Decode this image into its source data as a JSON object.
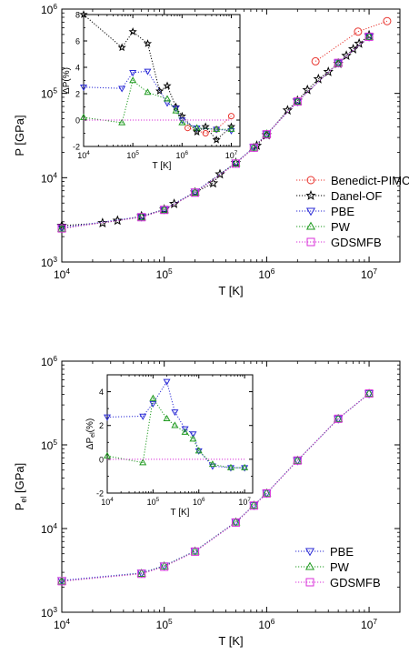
{
  "chart_data": [
    {
      "type": "scatter",
      "xlabel": "T [K]",
      "ylabel": "P [GPa]",
      "xscale": "log",
      "yscale": "log",
      "xlim": [
        10000,
        20000000
      ],
      "ylim": [
        1000,
        1000000
      ],
      "xticks": [
        {
          "v": 10000,
          "b": "10",
          "e": "4"
        },
        {
          "v": 100000,
          "b": "10",
          "e": "5"
        },
        {
          "v": 1000000,
          "b": "10",
          "e": "6"
        },
        {
          "v": 10000000,
          "b": "10",
          "e": "7"
        }
      ],
      "yticks": [
        {
          "v": 1000,
          "b": "10",
          "e": "3"
        },
        {
          "v": 10000,
          "b": "10",
          "e": "4"
        },
        {
          "v": 100000,
          "b": "10",
          "e": "5"
        },
        {
          "v": 1000000,
          "b": "10",
          "e": "6"
        }
      ],
      "legend_position": "bottom-right",
      "series": [
        {
          "name": "Benedict-PIMC",
          "color": "#e8352f",
          "marker": "circle",
          "x": [
            3000000,
            7800000,
            15000000
          ],
          "y": [
            240000,
            540000,
            720000
          ]
        },
        {
          "name": "Danel-OF",
          "color": "#000000",
          "marker": "star",
          "x": [
            10000,
            25000,
            35000,
            60000,
            100000,
            125000,
            200000,
            300000,
            350000,
            500000,
            800000,
            1000000,
            1600000,
            2000000,
            2500000,
            3200000,
            4000000,
            5000000,
            6000000,
            7000000,
            8000000,
            10000000
          ],
          "y": [
            2700,
            2900,
            3100,
            3500,
            4200,
            4900,
            6700,
            8600,
            11000,
            15000,
            24000,
            32000,
            63000,
            82000,
            110000,
            148000,
            180000,
            225000,
            280000,
            335000,
            390000,
            490000
          ]
        },
        {
          "name": "PBE",
          "color": "#2b2bd6",
          "marker": "triangle-down",
          "x": [
            10000,
            60000,
            100000,
            200000,
            500000,
            750000,
            1000000,
            2000000,
            5000000,
            10000000
          ],
          "y": [
            2550,
            3450,
            4200,
            6800,
            15000,
            23000,
            33000,
            80000,
            230000,
            470000
          ]
        },
        {
          "name": "PW",
          "color": "#1f9a1f",
          "marker": "triangle-up",
          "x": [
            10000,
            60000,
            100000,
            200000,
            500000,
            750000,
            1000000,
            2000000,
            5000000,
            10000000
          ],
          "y": [
            2500,
            3400,
            4150,
            6700,
            14800,
            22800,
            32800,
            80000,
            230000,
            470000
          ]
        },
        {
          "name": "GDSMFB",
          "color": "#d92fd9",
          "marker": "square",
          "x": [
            10000,
            60000,
            100000,
            200000,
            500000,
            750000,
            1000000,
            2000000,
            5000000,
            10000000
          ],
          "y": [
            2500,
            3400,
            4150,
            6650,
            14700,
            22700,
            32700,
            80000,
            230000,
            470000
          ]
        }
      ],
      "inset": {
        "xlabel": "T [K]",
        "ylabel": "ΔP(%)",
        "xscale": "log",
        "xlim": [
          10000,
          15000000
        ],
        "ylim": [
          -2,
          8
        ],
        "xticks": [
          {
            "v": 10000,
            "b": "10",
            "e": "4"
          },
          {
            "v": 100000,
            "b": "10",
            "e": "5"
          },
          {
            "v": 1000000,
            "b": "10",
            "e": "6"
          },
          {
            "v": 10000000,
            "b": "10",
            "e": "7"
          }
        ],
        "yticks": [
          -2,
          0,
          2,
          4,
          6,
          8
        ],
        "series": [
          {
            "name": "Benedict-PIMC",
            "color": "#e8352f",
            "marker": "circle",
            "x": [
              1300000,
              3000000,
              5000000,
              10000000
            ],
            "y": [
              -0.6,
              -1.0,
              -0.7,
              0.3
            ]
          },
          {
            "name": "Danel-OF",
            "color": "#000000",
            "marker": "star",
            "x": [
              10000,
              60000,
              100000,
              200000,
              350000,
              500000,
              750000,
              1000000,
              2000000,
              3000000,
              5000000,
              10000000
            ],
            "y": [
              8.0,
              5.5,
              6.7,
              5.8,
              2.2,
              2.6,
              1.0,
              0.3,
              -0.9,
              -0.5,
              -1.5,
              -0.5
            ]
          },
          {
            "name": "PBE",
            "color": "#2b2bd6",
            "marker": "triangle-down",
            "x": [
              10000,
              60000,
              100000,
              200000,
              500000,
              750000,
              1000000,
              2000000,
              5000000,
              10000000
            ],
            "y": [
              2.5,
              2.4,
              3.6,
              3.7,
              1.3,
              0.9,
              0.0,
              -0.6,
              -0.7,
              -0.8
            ]
          },
          {
            "name": "PW",
            "color": "#1f9a1f",
            "marker": "triangle-up",
            "x": [
              10000,
              60000,
              100000,
              200000,
              500000,
              750000,
              1000000,
              2000000,
              5000000,
              10000000
            ],
            "y": [
              0.2,
              -0.2,
              3.0,
              2.1,
              1.6,
              0.7,
              -0.2,
              -0.6,
              -0.7,
              -0.7
            ]
          },
          {
            "name": "GDSMFB",
            "color": "#d92fd9",
            "marker": "none",
            "x": [
              10000,
              10000000
            ],
            "y": [
              0,
              0
            ]
          }
        ]
      }
    },
    {
      "type": "scatter",
      "xlabel": "T [K]",
      "ylabel_main": "P",
      "ylabel_sub": "el",
      "ylabel_rest": " [GPa]",
      "xscale": "log",
      "yscale": "log",
      "xlim": [
        10000,
        20000000
      ],
      "ylim": [
        1000,
        1000000
      ],
      "xticks": [
        {
          "v": 10000,
          "b": "10",
          "e": "4"
        },
        {
          "v": 100000,
          "b": "10",
          "e": "5"
        },
        {
          "v": 1000000,
          "b": "10",
          "e": "6"
        },
        {
          "v": 10000000,
          "b": "10",
          "e": "7"
        }
      ],
      "yticks": [
        {
          "v": 1000,
          "b": "10",
          "e": "3"
        },
        {
          "v": 10000,
          "b": "10",
          "e": "4"
        },
        {
          "v": 100000,
          "b": "10",
          "e": "5"
        },
        {
          "v": 1000000,
          "b": "10",
          "e": "6"
        }
      ],
      "legend_position": "bottom-right",
      "series": [
        {
          "name": "PBE",
          "color": "#2b2bd6",
          "marker": "triangle-down",
          "x": [
            10000,
            60000,
            100000,
            200000,
            500000,
            750000,
            1000000,
            2000000,
            5000000,
            10000000
          ],
          "y": [
            2400,
            2950,
            3600,
            5400,
            12000,
            19000,
            26500,
            65000,
            205000,
            410000
          ]
        },
        {
          "name": "PW",
          "color": "#1f9a1f",
          "marker": "triangle-up",
          "x": [
            10000,
            60000,
            100000,
            200000,
            500000,
            750000,
            1000000,
            2000000,
            5000000,
            10000000
          ],
          "y": [
            2350,
            2900,
            3550,
            5350,
            11900,
            18900,
            26400,
            65000,
            205000,
            410000
          ]
        },
        {
          "name": "GDSMFB",
          "color": "#d92fd9",
          "marker": "square",
          "x": [
            10000,
            60000,
            100000,
            200000,
            500000,
            750000,
            1000000,
            2000000,
            5000000,
            10000000
          ],
          "y": [
            2350,
            2880,
            3500,
            5300,
            11800,
            18800,
            26300,
            65000,
            205000,
            410000
          ]
        }
      ],
      "inset": {
        "xlabel": "T [K]",
        "ylabel_main": "ΔP",
        "ylabel_sub": "el",
        "ylabel_rest": "(%)",
        "xscale": "log",
        "xlim": [
          10000,
          15000000
        ],
        "ylim": [
          -2,
          5
        ],
        "xticks": [
          {
            "v": 10000,
            "b": "10",
            "e": "4"
          },
          {
            "v": 100000,
            "b": "10",
            "e": "5"
          },
          {
            "v": 1000000,
            "b": "10",
            "e": "6"
          },
          {
            "v": 10000000,
            "b": "10",
            "e": "7"
          }
        ],
        "yticks": [
          -2,
          0,
          2,
          4
        ],
        "series": [
          {
            "name": "PBE",
            "color": "#2b2bd6",
            "marker": "triangle-down",
            "x": [
              10000,
              60000,
              100000,
              200000,
              300000,
              500000,
              750000,
              1000000,
              2000000,
              5000000,
              10000000
            ],
            "y": [
              2.5,
              2.55,
              3.3,
              4.6,
              2.8,
              1.8,
              1.5,
              0.5,
              -0.4,
              -0.5,
              -0.5
            ]
          },
          {
            "name": "PW",
            "color": "#1f9a1f",
            "marker": "triangle-up",
            "x": [
              10000,
              60000,
              100000,
              200000,
              300000,
              500000,
              750000,
              1000000,
              2000000,
              5000000,
              10000000
            ],
            "y": [
              0.2,
              -0.2,
              3.6,
              2.4,
              2.0,
              1.6,
              1.2,
              0.5,
              -0.3,
              -0.5,
              -0.5
            ]
          },
          {
            "name": "GDSMFB",
            "color": "#d92fd9",
            "marker": "none",
            "x": [
              10000,
              10000000
            ],
            "y": [
              0,
              0
            ]
          }
        ]
      }
    }
  ]
}
